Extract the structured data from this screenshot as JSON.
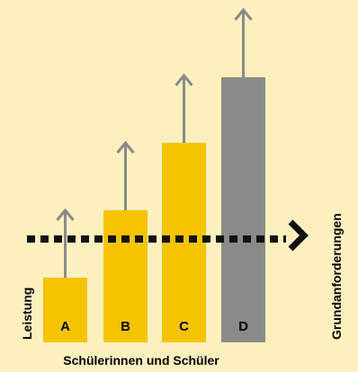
{
  "chart_data": {
    "type": "bar",
    "categories": [
      "A",
      "B",
      "C",
      "D"
    ],
    "values": [
      72,
      147,
      222,
      295
    ],
    "baseline_requirement": 115,
    "xlabel": "Schülerinnen und Schüler",
    "ylabel": "Leistung",
    "threshold_label": "Grundanforderungen",
    "bar_colors": [
      "#f5c400",
      "#f5c400",
      "#f5c400",
      "#8a8b88"
    ],
    "arrow_color": "#8a8b88",
    "threshold_color": "#111111",
    "background": "#fdf0bf"
  }
}
